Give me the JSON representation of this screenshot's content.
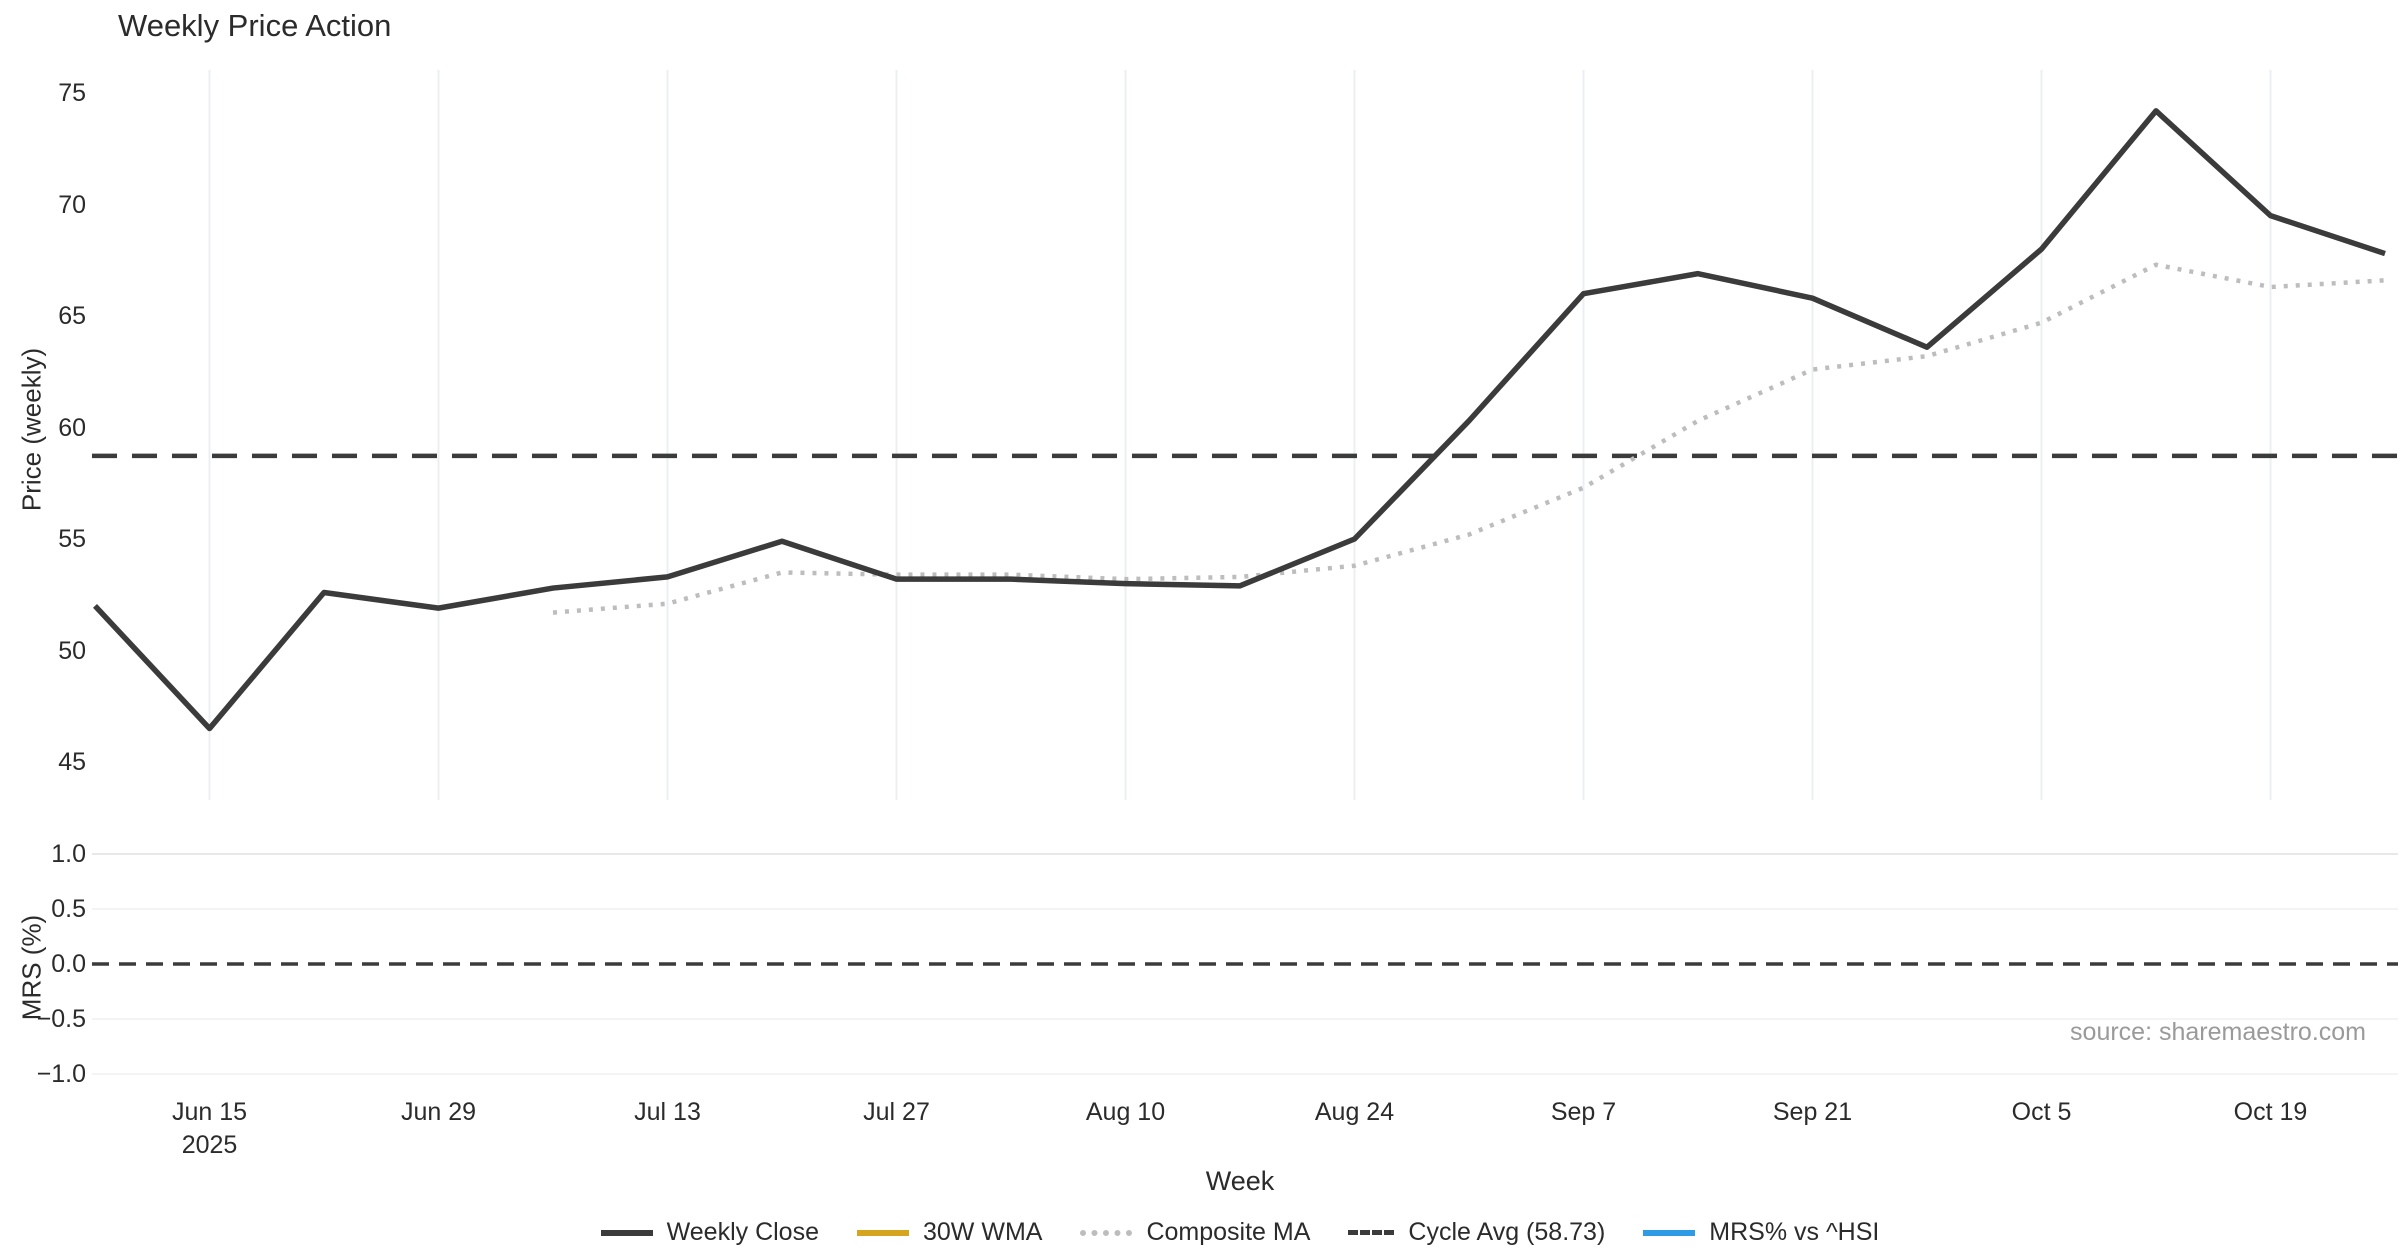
{
  "title": "Weekly Price Action",
  "source": "source: sharemaestro.com",
  "axes": {
    "xlabel": "Week",
    "price": {
      "ylabel": "Price (weekly)",
      "yticks": [
        75,
        70,
        65,
        60,
        55,
        50,
        45
      ]
    },
    "mrs": {
      "ylabel": "MRS (%)",
      "yticks": [
        {
          "label": "1.0",
          "value": 1.0
        },
        {
          "label": "0.5",
          "value": 0.5
        },
        {
          "label": "0.0",
          "value": 0.0
        },
        {
          "label": "−0.5",
          "value": -0.5
        },
        {
          "label": "−1.0",
          "value": -1.0
        }
      ]
    },
    "xticks": [
      {
        "label": "Jun 15",
        "sub": "2025",
        "week": 1
      },
      {
        "label": "Jun 29",
        "week": 3
      },
      {
        "label": "Jul 13",
        "week": 5
      },
      {
        "label": "Jul 27",
        "week": 7
      },
      {
        "label": "Aug 10",
        "week": 9
      },
      {
        "label": "Aug 24",
        "week": 11
      },
      {
        "label": "Sep 7",
        "week": 13
      },
      {
        "label": "Sep 21",
        "week": 15
      },
      {
        "label": "Oct 5",
        "week": 17
      },
      {
        "label": "Oct 19",
        "week": 19
      }
    ]
  },
  "legend": [
    {
      "label": "Weekly Close",
      "color": "#3b3b3b",
      "style": "solid"
    },
    {
      "label": "30W WMA",
      "color": "#d6a51f",
      "style": "solid"
    },
    {
      "label": "Composite MA",
      "color": "#bdbdbd",
      "style": "dotted"
    },
    {
      "label": "Cycle Avg (58.73)",
      "color": "#3b3b3b",
      "style": "dashed"
    },
    {
      "label": "MRS% vs ^HSI",
      "color": "#2f9be4",
      "style": "solid"
    }
  ],
  "colors": {
    "weekly_close": "#3b3b3b",
    "composite_ma": "#bdbdbd",
    "cycle_avg": "#3b3b3b",
    "wma_30w": "#d6a51f",
    "mrs_line": "#2f9be4",
    "grid_vertical": "#eceff1",
    "grid_strong": "#e6e8ea",
    "grid_faint": "#f3f4f6",
    "text": "#2b2b2b",
    "source_text": "#9a9a9a"
  },
  "chart_data": [
    {
      "type": "line",
      "panel": "price",
      "title": "Weekly Price Action",
      "xlabel": "Week",
      "ylabel": "Price (weekly)",
      "ylim": [
        43.3,
        76.0
      ],
      "grid": "vertical-only",
      "x": [
        "2025-06-08",
        "2025-06-15",
        "2025-06-22",
        "2025-06-29",
        "2025-07-06",
        "2025-07-13",
        "2025-07-20",
        "2025-07-27",
        "2025-08-03",
        "2025-08-10",
        "2025-08-17",
        "2025-08-24",
        "2025-08-31",
        "2025-09-07",
        "2025-09-14",
        "2025-09-21",
        "2025-09-28",
        "2025-10-05",
        "2025-10-12",
        "2025-10-19",
        "2025-10-26"
      ],
      "series": [
        {
          "name": "Weekly Close",
          "style": "solid",
          "color": "#3b3b3b",
          "values": [
            52.0,
            46.5,
            52.6,
            51.9,
            52.8,
            53.3,
            54.9,
            53.2,
            53.2,
            53.0,
            52.9,
            55.0,
            60.3,
            66.0,
            66.9,
            65.8,
            63.6,
            68.0,
            74.2,
            69.5,
            67.8
          ]
        },
        {
          "name": "Composite MA",
          "style": "dotted",
          "color": "#bdbdbd",
          "values": [
            null,
            null,
            null,
            null,
            51.7,
            52.1,
            53.5,
            53.4,
            53.4,
            53.2,
            53.3,
            53.8,
            55.2,
            57.3,
            60.3,
            62.6,
            63.2,
            64.7,
            67.3,
            66.3,
            66.6
          ]
        },
        {
          "name": "30W WMA",
          "style": "solid",
          "color": "#d6a51f",
          "values": [
            null,
            null,
            null,
            null,
            null,
            null,
            null,
            null,
            null,
            null,
            null,
            null,
            null,
            null,
            null,
            null,
            null,
            null,
            null,
            null,
            null
          ]
        }
      ],
      "hlines": [
        {
          "name": "Cycle Avg",
          "value": 58.73,
          "style": "dashed",
          "color": "#3b3b3b"
        }
      ],
      "legend_position": "bottom-center"
    },
    {
      "type": "line",
      "panel": "mrs",
      "ylabel": "MRS (%)",
      "ylim": [
        -1.1,
        1.1
      ],
      "grid": "horizontal-only",
      "x": [
        "2025-06-08",
        "2025-10-26"
      ],
      "series": [
        {
          "name": "MRS% vs ^HSI",
          "style": "solid",
          "color": "#2f9be4",
          "values": [
            null,
            null
          ]
        }
      ],
      "hlines": [
        {
          "name": "zero",
          "value": 0.0,
          "style": "dashed",
          "color": "#3b3b3b"
        }
      ]
    }
  ]
}
